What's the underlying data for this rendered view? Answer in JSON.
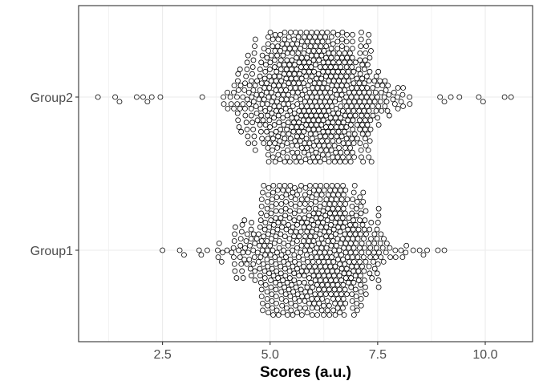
{
  "chart_data": {
    "type": "scatter",
    "subtype": "beeswarm",
    "title": "",
    "xlabel": "Scores (a.u.)",
    "ylabel": "",
    "xlim": [
      0.55,
      11.1
    ],
    "x_ticks": [
      2.5,
      5.0,
      7.5,
      10.0
    ],
    "x_tick_labels": [
      "2.5",
      "5.0",
      "7.5",
      "10.0"
    ],
    "categories": [
      "Group2",
      "Group1"
    ],
    "grid": true,
    "legend": "none",
    "series": [
      {
        "name": "Group2",
        "values_summary": {
          "min": 1.0,
          "max": 10.6,
          "center": 6.0,
          "approx_n": 1000
        },
        "outliers": [
          1.0,
          1.4,
          1.5,
          1.9,
          2.05,
          2.15,
          2.25,
          2.45,
          8.95,
          9.05,
          9.2,
          9.4,
          9.85,
          9.95,
          10.45,
          10.6
        ]
      },
      {
        "name": "Group1",
        "values_summary": {
          "min": 2.5,
          "max": 9.05,
          "center": 6.0,
          "approx_n": 1000
        },
        "outliers": [
          2.5,
          2.9,
          3.0,
          3.35,
          3.4,
          8.65,
          8.9,
          9.05
        ]
      }
    ],
    "colors": {
      "point_fill": "#ffffff",
      "point_stroke": "#000000",
      "grid": "#ebebeb",
      "panel_border": "#333333"
    }
  }
}
